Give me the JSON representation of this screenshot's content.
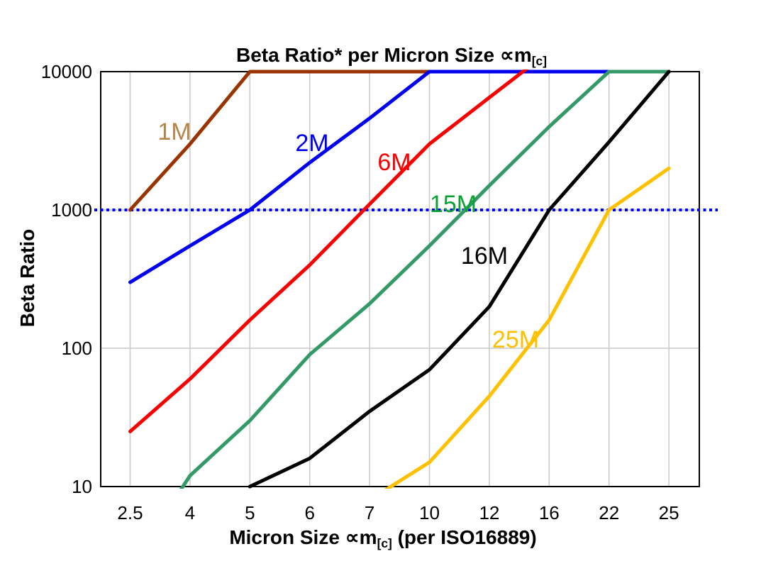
{
  "header": {
    "title_main": "Beta Ratio* per Micron Size ∝m",
    "title_sub": "[c]"
  },
  "axes": {
    "y_title": "Beta Ratio",
    "x_title_main": "Micron Size ∝m",
    "x_title_sub": "[c]",
    "x_title_suffix": " (per ISO16889)"
  },
  "chart_data": {
    "type": "line",
    "title": "Beta Ratio* per Micron Size ∝m[c]",
    "xlabel": "Micron Size ∝m[c] (per ISO16889)",
    "ylabel": "Beta Ratio",
    "y_scale": "log",
    "ylim": [
      10,
      10000
    ],
    "grid": true,
    "legend_position": "inline-labels",
    "x_categories": [
      "2.5",
      "4",
      "5",
      "6",
      "7",
      "10",
      "12",
      "16",
      "22",
      "25"
    ],
    "y_ticks": [
      "10",
      "100",
      "1000",
      "10000"
    ],
    "reference_line": {
      "value": 1000,
      "color": "#0000FF",
      "style": "dotted"
    },
    "style": {
      "grid_color": "#C8C8C8",
      "border_color": "#000000",
      "text_color": "#000000"
    },
    "series": [
      {
        "name": "1M",
        "color": "#993300",
        "label_color": "#B6854B",
        "values": [
          1000,
          3000,
          10000,
          10000,
          10000,
          10000,
          10000,
          10000,
          10000,
          10000
        ]
      },
      {
        "name": "2M",
        "color": "#0000EE",
        "label_color": "#0000EE",
        "values": [
          300,
          550,
          1000,
          2200,
          4600,
          10000,
          10000,
          10000,
          10000,
          10000
        ]
      },
      {
        "name": "6M",
        "color": "#F80000",
        "label_color": "#F80000",
        "values": [
          25,
          60,
          160,
          400,
          1100,
          3000,
          6500,
          14000,
          null,
          null
        ]
      },
      {
        "name": "15M",
        "color": "#339966",
        "label_color": "#0CA134",
        "values": [
          2.6,
          12,
          30,
          90,
          210,
          550,
          1500,
          4000,
          10000,
          10000
        ]
      },
      {
        "name": "16M",
        "color": "#000000",
        "label_color": "#000000",
        "values": [
          null,
          null,
          10,
          16,
          35,
          70,
          200,
          1000,
          3100,
          10000
        ]
      },
      {
        "name": "25M",
        "color": "#FFC000",
        "label_color": "#FFC000",
        "values": [
          null,
          null,
          null,
          null,
          8,
          15,
          45,
          160,
          1000,
          2000
        ]
      }
    ]
  }
}
